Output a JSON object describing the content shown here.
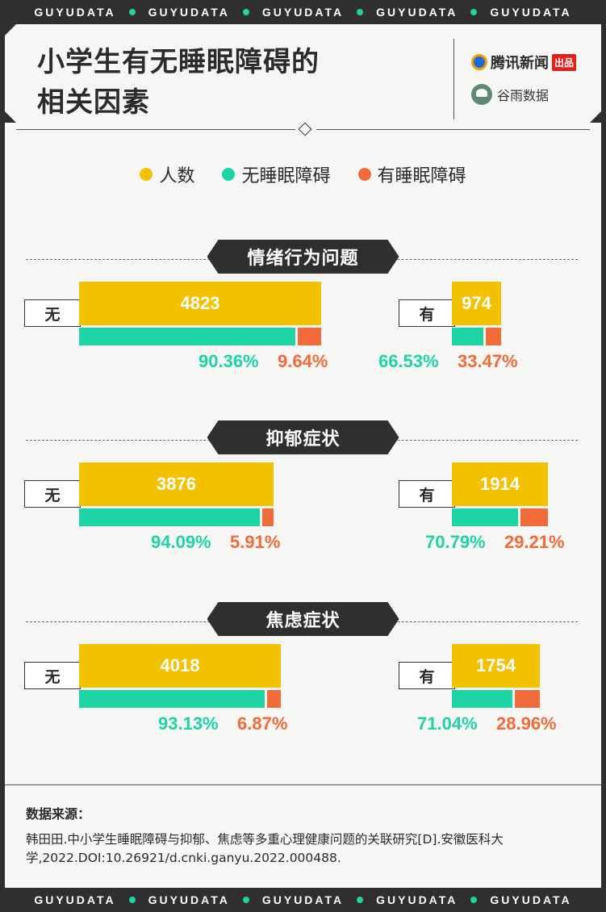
{
  "brand_strip": [
    "GUYUDATA",
    "GUYUDATA",
    "GUYUDATA",
    "GUYUDATA",
    "GUYUDATA"
  ],
  "header": {
    "title_line1": "小学生有无睡眠障碍的",
    "title_line2": "相关因素",
    "logo_tencent": "腾讯新闻",
    "logo_tencent_badge": "出品",
    "logo_guyu": "谷雨数据"
  },
  "colors": {
    "count": "#f2c200",
    "no_disorder": "#1ed3a4",
    "has_disorder": "#f26b3a",
    "dark": "#2f2f2f"
  },
  "chart_data": {
    "type": "bar",
    "legend": [
      "人数",
      "无睡眠障碍",
      "有睡眠障碍"
    ],
    "sections": [
      {
        "title": "情绪行为问题",
        "groups": [
          {
            "condition": "无",
            "count": 4823,
            "no_disorder_pct": "90.36%",
            "has_disorder_pct": "9.64%",
            "no_share": 0.9036
          },
          {
            "condition": "有",
            "count": 974,
            "no_disorder_pct": "66.53%",
            "has_disorder_pct": "33.47%",
            "no_share": 0.6653
          }
        ]
      },
      {
        "title": "抑郁症状",
        "groups": [
          {
            "condition": "无",
            "count": 3876,
            "no_disorder_pct": "94.09%",
            "has_disorder_pct": "5.91%",
            "no_share": 0.9409
          },
          {
            "condition": "有",
            "count": 1914,
            "no_disorder_pct": "70.79%",
            "has_disorder_pct": "29.21%",
            "no_share": 0.7079
          }
        ]
      },
      {
        "title": "焦虑症状",
        "groups": [
          {
            "condition": "无",
            "count": 4018,
            "no_disorder_pct": "93.13%",
            "has_disorder_pct": "6.87%",
            "no_share": 0.9313
          },
          {
            "condition": "有",
            "count": 1754,
            "no_disorder_pct": "71.04%",
            "has_disorder_pct": "28.96%",
            "no_share": 0.7104
          }
        ]
      }
    ]
  },
  "source": {
    "label": "数据来源：",
    "text": "韩田田.中小学生睡眠障碍与抑郁、焦虑等多重心理健康问题的关联研究[D].安徽医科大学,2022.DOI:10.26921/d.cnki.ganyu.2022.000488."
  }
}
